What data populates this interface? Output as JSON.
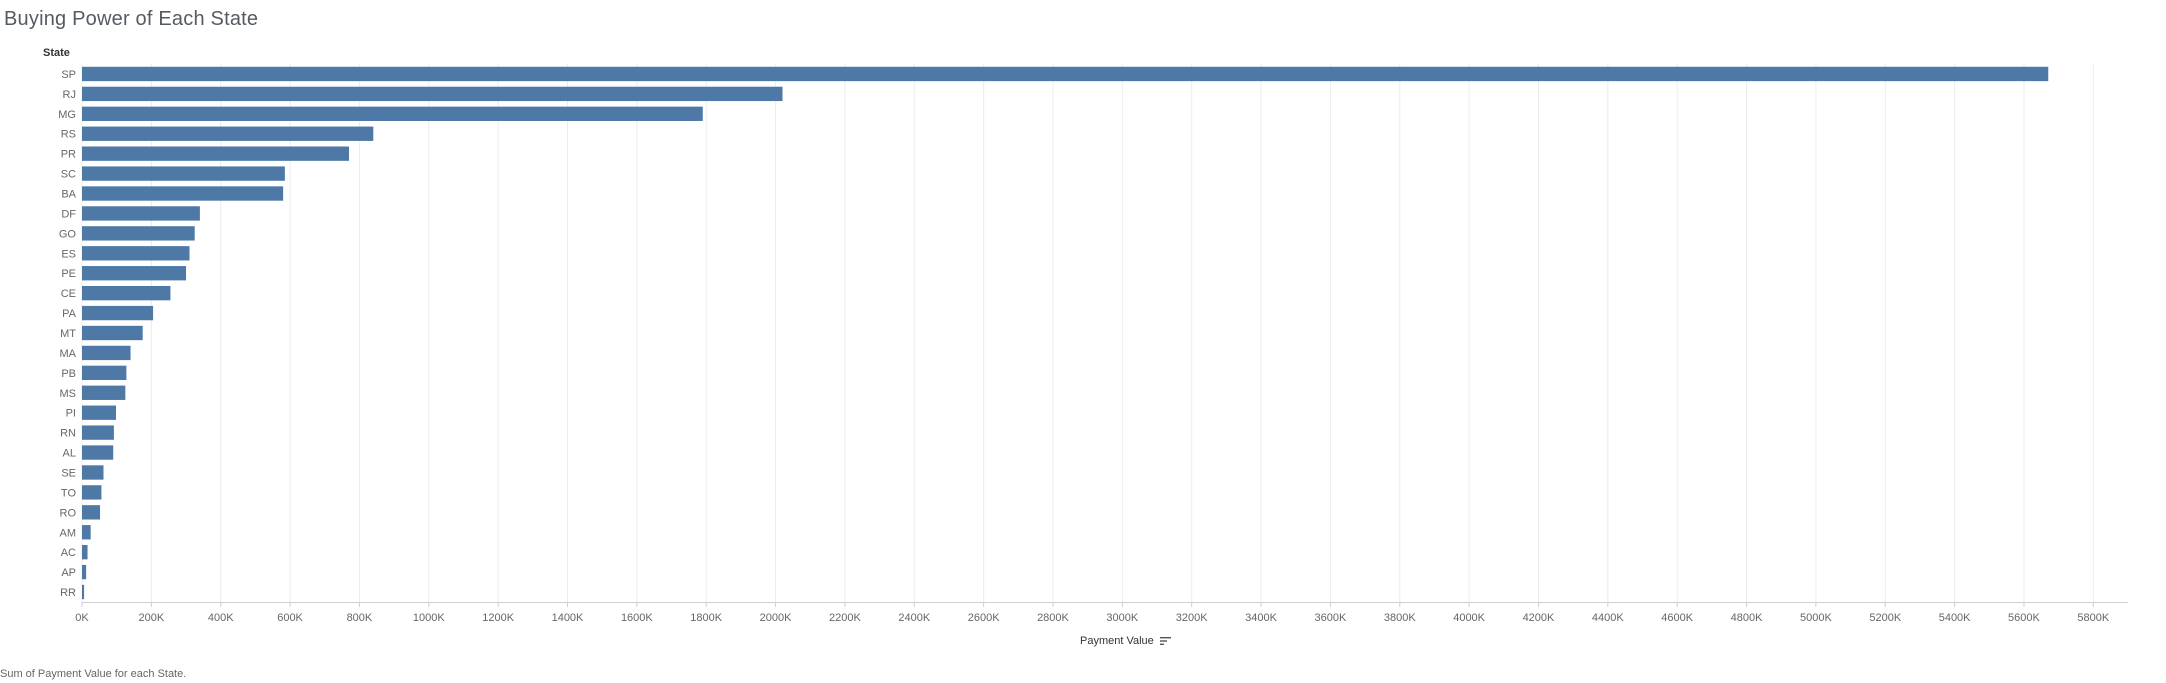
{
  "title": "Buying Power of Each State",
  "row_header": "State",
  "footer_text": "Sum of Payment Value for each State.",
  "colors": {
    "bar": "#4e79a7",
    "grid": "#ececec",
    "axis": "#cfcfcf"
  },
  "chart_data": {
    "type": "bar",
    "orientation": "horizontal",
    "title": "Buying Power of Each State",
    "ylabel": "State",
    "xlabel": "Payment Value",
    "xlim": [
      0,
      5900000
    ],
    "grid": true,
    "categories": [
      "SP",
      "RJ",
      "MG",
      "RS",
      "PR",
      "SC",
      "BA",
      "DF",
      "GO",
      "ES",
      "PE",
      "CE",
      "PA",
      "MT",
      "MA",
      "PB",
      "MS",
      "PI",
      "RN",
      "AL",
      "SE",
      "TO",
      "RO",
      "AM",
      "AC",
      "AP",
      "RR"
    ],
    "values": [
      5670000,
      2020000,
      1790000,
      840000,
      770000,
      585000,
      580000,
      340000,
      325000,
      310000,
      300000,
      255000,
      205000,
      175000,
      140000,
      128000,
      125000,
      98000,
      92000,
      90000,
      62000,
      56000,
      52000,
      25000,
      16000,
      12000,
      6000
    ],
    "x_ticks": [
      0,
      200000,
      400000,
      600000,
      800000,
      1000000,
      1200000,
      1400000,
      1600000,
      1800000,
      2000000,
      2200000,
      2400000,
      2600000,
      2800000,
      3000000,
      3200000,
      3400000,
      3600000,
      3800000,
      4000000,
      4200000,
      4400000,
      4600000,
      4800000,
      5000000,
      5200000,
      5400000,
      5600000,
      5800000
    ],
    "x_tick_labels": [
      "0K",
      "200K",
      "400K",
      "600K",
      "800K",
      "1000K",
      "1200K",
      "1400K",
      "1600K",
      "1800K",
      "2000K",
      "2200K",
      "2400K",
      "2600K",
      "2800K",
      "3000K",
      "3200K",
      "3400K",
      "3600K",
      "3800K",
      "4000K",
      "4200K",
      "4400K",
      "4600K",
      "4800K",
      "5000K",
      "5200K",
      "5400K",
      "5600K",
      "5800K"
    ]
  }
}
